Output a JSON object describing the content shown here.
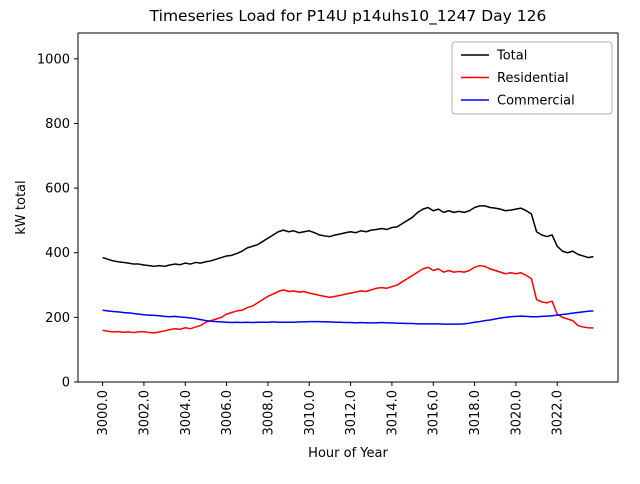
{
  "chart_data": {
    "type": "line",
    "title": "Timeseries Load for P14U p14uhs10_1247  Day 126",
    "xlabel": "Hour of Year",
    "ylabel": "kW total",
    "grid": false,
    "legend": {
      "position": "upper right",
      "entries": [
        "Total",
        "Residential",
        "Commercial"
      ]
    },
    "xlim": [
      2998.81,
      3024.94
    ],
    "ylim": [
      0,
      1080
    ],
    "xticks": [
      3000,
      3002,
      3004,
      3006,
      3008,
      3010,
      3012,
      3014,
      3016,
      3018,
      3020,
      3022
    ],
    "xtick_labels": [
      "3000.0",
      "3002.0",
      "3004.0",
      "3006.0",
      "3008.0",
      "3010.0",
      "3012.0",
      "3014.0",
      "3016.0",
      "3018.0",
      "3020.0",
      "3022.0"
    ],
    "yticks": [
      0,
      200,
      400,
      600,
      800,
      1000
    ],
    "ytick_labels": [
      "0",
      "200",
      "400",
      "600",
      "800",
      "1000"
    ],
    "x": [
      3000.0,
      3000.25,
      3000.5,
      3000.75,
      3001.0,
      3001.25,
      3001.5,
      3001.75,
      3002.0,
      3002.25,
      3002.5,
      3002.75,
      3003.0,
      3003.25,
      3003.5,
      3003.75,
      3004.0,
      3004.25,
      3004.5,
      3004.75,
      3005.0,
      3005.25,
      3005.5,
      3005.75,
      3006.0,
      3006.25,
      3006.5,
      3006.75,
      3007.0,
      3007.25,
      3007.5,
      3007.75,
      3008.0,
      3008.25,
      3008.5,
      3008.75,
      3009.0,
      3009.25,
      3009.5,
      3009.75,
      3010.0,
      3010.25,
      3010.5,
      3010.75,
      3011.0,
      3011.25,
      3011.5,
      3011.75,
      3012.0,
      3012.25,
      3012.5,
      3012.75,
      3013.0,
      3013.25,
      3013.5,
      3013.75,
      3014.0,
      3014.25,
      3014.5,
      3014.75,
      3015.0,
      3015.25,
      3015.5,
      3015.75,
      3016.0,
      3016.25,
      3016.5,
      3016.75,
      3017.0,
      3017.25,
      3017.5,
      3017.75,
      3018.0,
      3018.25,
      3018.5,
      3018.75,
      3019.0,
      3019.25,
      3019.5,
      3019.75,
      3020.0,
      3020.25,
      3020.5,
      3020.75,
      3021.0,
      3021.25,
      3021.5,
      3021.75,
      3022.0,
      3022.25,
      3022.5,
      3022.75,
      3023.0,
      3023.25,
      3023.5,
      3023.75
    ],
    "series": [
      {
        "name": "Total",
        "color": "#000000",
        "values": [
          385,
          380,
          375,
          372,
          370,
          368,
          365,
          365,
          362,
          360,
          358,
          360,
          358,
          362,
          365,
          363,
          368,
          365,
          370,
          368,
          372,
          375,
          380,
          385,
          390,
          392,
          398,
          405,
          415,
          420,
          425,
          435,
          445,
          455,
          465,
          470,
          465,
          468,
          462,
          465,
          468,
          462,
          455,
          452,
          450,
          455,
          458,
          462,
          465,
          462,
          468,
          465,
          470,
          472,
          475,
          472,
          478,
          480,
          490,
          500,
          510,
          525,
          535,
          540,
          530,
          535,
          525,
          530,
          525,
          528,
          525,
          530,
          540,
          545,
          545,
          540,
          538,
          535,
          530,
          532,
          535,
          538,
          530,
          520,
          465,
          455,
          450,
          455,
          420,
          405,
          400,
          405,
          395,
          390,
          385,
          388
        ]
      },
      {
        "name": "Residential",
        "color": "#ff0000",
        "values": [
          160,
          157,
          155,
          156,
          154,
          155,
          153,
          155,
          156,
          153,
          152,
          155,
          158,
          162,
          165,
          163,
          168,
          165,
          170,
          175,
          185,
          190,
          195,
          200,
          210,
          215,
          220,
          222,
          230,
          235,
          245,
          255,
          265,
          272,
          280,
          285,
          280,
          282,
          278,
          280,
          275,
          272,
          268,
          265,
          262,
          265,
          268,
          272,
          275,
          278,
          282,
          280,
          285,
          290,
          292,
          290,
          295,
          300,
          310,
          320,
          330,
          340,
          350,
          355,
          345,
          350,
          340,
          345,
          340,
          342,
          340,
          345,
          355,
          360,
          358,
          350,
          345,
          340,
          335,
          338,
          335,
          338,
          330,
          320,
          255,
          248,
          245,
          250,
          210,
          200,
          195,
          190,
          175,
          170,
          168,
          167
        ]
      },
      {
        "name": "Commercial",
        "color": "#0000ff",
        "values": [
          222,
          220,
          218,
          217,
          215,
          214,
          212,
          210,
          208,
          207,
          206,
          205,
          203,
          202,
          203,
          201,
          200,
          198,
          196,
          193,
          190,
          188,
          187,
          186,
          185,
          184,
          185,
          184,
          185,
          184,
          185,
          185,
          185,
          186,
          185,
          185,
          185,
          185,
          186,
          186,
          187,
          187,
          187,
          186,
          186,
          185,
          185,
          184,
          184,
          183,
          184,
          183,
          183,
          183,
          184,
          183,
          183,
          182,
          182,
          181,
          181,
          180,
          180,
          180,
          180,
          180,
          179,
          179,
          179,
          179,
          180,
          182,
          185,
          187,
          190,
          192,
          195,
          198,
          200,
          202,
          203,
          204,
          203,
          202,
          202,
          203,
          204,
          205,
          207,
          209,
          211,
          213,
          215,
          217,
          219,
          220
        ]
      }
    ]
  }
}
